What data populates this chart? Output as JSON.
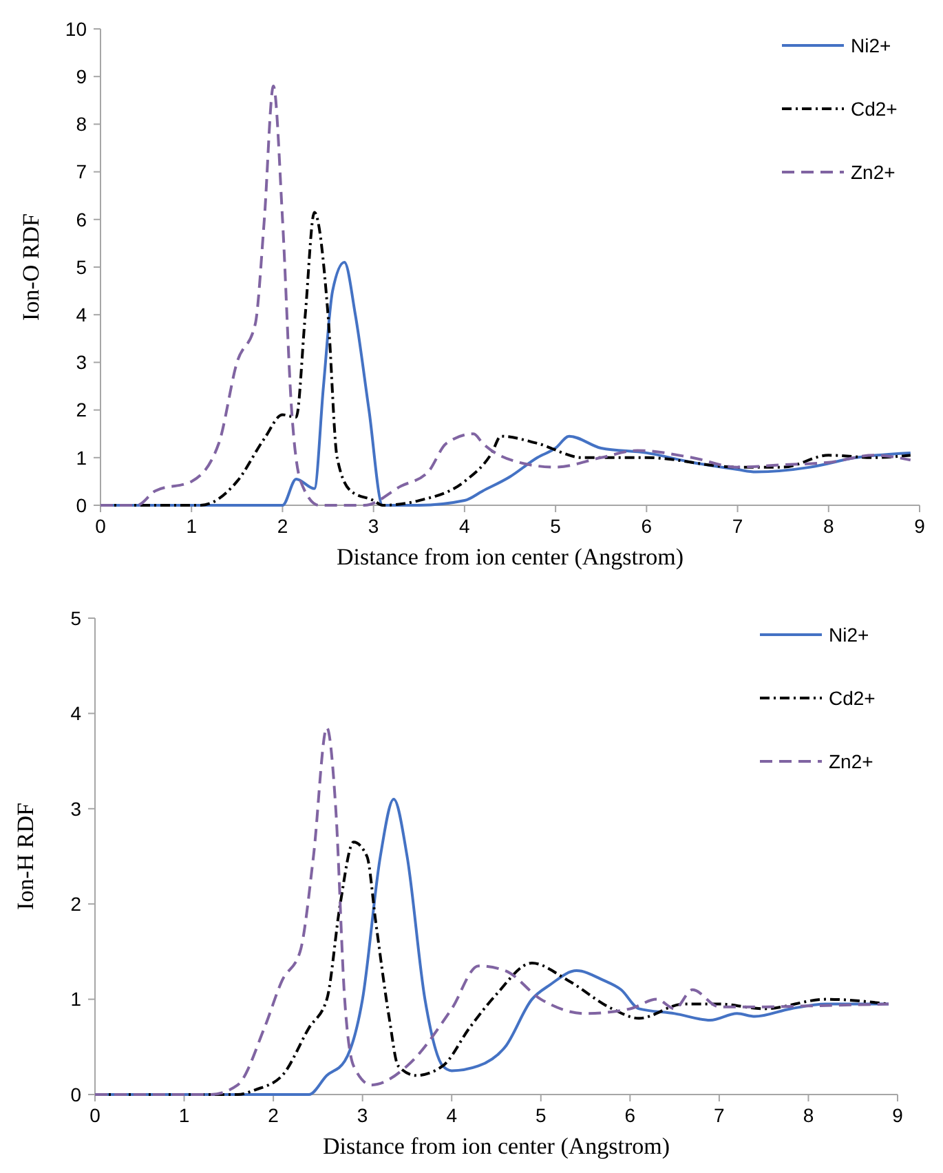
{
  "chart_data": [
    {
      "type": "line",
      "xlabel": "Distance from ion center (Angstrom)",
      "ylabel": "Ion-O RDF",
      "xlim": [
        0,
        9
      ],
      "xticks": [
        0,
        1,
        2,
        3,
        4,
        5,
        6,
        7,
        8,
        9
      ],
      "ylim": [
        0,
        10
      ],
      "yticks": [
        0,
        1,
        2,
        3,
        4,
        5,
        6,
        7,
        8,
        9,
        10
      ],
      "grid": false,
      "legend": "top right",
      "marker": "none",
      "series": [
        {
          "name": "Ni2+",
          "color": "#4472c4",
          "line_style": "solid",
          "x": [
            0,
            1,
            2.0,
            2.15,
            2.35,
            2.45,
            2.55,
            2.68,
            2.8,
            2.95,
            3.1,
            3.5,
            4,
            4.2,
            4.5,
            4.8,
            5.0,
            5.15,
            5.5,
            6,
            6.5,
            7,
            7.2,
            7.8,
            8.3,
            8.9
          ],
          "values": [
            0,
            0,
            0,
            0.55,
            0.35,
            2.5,
            4.5,
            5.1,
            4.0,
            2.0,
            0,
            0,
            0.1,
            0.3,
            0.6,
            1.0,
            1.2,
            1.45,
            1.2,
            1.1,
            0.9,
            0.75,
            0.7,
            0.8,
            1.0,
            1.1
          ]
        },
        {
          "name": "Cd2+",
          "color": "#000000",
          "line_style": "dashdot",
          "x": [
            0,
            1.1,
            1.5,
            1.8,
            2.0,
            2.15,
            2.25,
            2.35,
            2.5,
            2.6,
            2.75,
            3.0,
            3.1,
            3.5,
            4,
            4.3,
            4.4,
            4.8,
            5.3,
            6,
            7,
            7.5,
            8,
            8.5,
            8.9
          ],
          "values": [
            0,
            0,
            0.5,
            1.4,
            1.9,
            1.85,
            4.0,
            6.15,
            4.0,
            1.0,
            0.3,
            0.1,
            0,
            0.1,
            0.5,
            1.1,
            1.45,
            1.3,
            1.0,
            1.0,
            0.8,
            0.8,
            1.05,
            1.0,
            1.05
          ]
        },
        {
          "name": "Zn2+",
          "color": "#8064a2",
          "line_style": "dashed",
          "x": [
            0,
            0.4,
            0.6,
            1.0,
            1.3,
            1.5,
            1.7,
            1.8,
            1.9,
            2.0,
            2.1,
            2.2,
            2.4,
            2.9,
            3.3,
            3.6,
            3.8,
            4.1,
            4.2,
            4.6,
            5.0,
            5.5,
            5.9,
            6.5,
            7.0,
            7.5,
            8,
            8.5,
            8.9
          ],
          "values": [
            0,
            0,
            0.3,
            0.5,
            1.3,
            3.0,
            3.8,
            6.0,
            8.8,
            6.0,
            2.0,
            0.5,
            0,
            0,
            0.4,
            0.7,
            1.3,
            1.5,
            1.3,
            0.9,
            0.8,
            1.0,
            1.15,
            1.0,
            0.8,
            0.85,
            0.9,
            1.05,
            0.95
          ]
        }
      ]
    },
    {
      "type": "line",
      "xlabel": "Distance from ion center (Angstrom)",
      "ylabel": "Ion-H RDF",
      "xlim": [
        0,
        9
      ],
      "xticks": [
        0,
        1,
        2,
        3,
        4,
        5,
        6,
        7,
        8,
        9
      ],
      "ylim": [
        0,
        5
      ],
      "yticks": [
        0,
        1,
        2,
        3,
        4,
        5
      ],
      "grid": false,
      "legend": "top right",
      "marker": "none",
      "series": [
        {
          "name": "Ni2+",
          "color": "#4472c4",
          "line_style": "solid",
          "x": [
            0,
            2.4,
            2.6,
            2.8,
            3.0,
            3.2,
            3.35,
            3.5,
            3.7,
            3.9,
            4.0,
            4.3,
            4.6,
            4.9,
            5.1,
            5.4,
            5.7,
            5.9,
            6.1,
            6.5,
            6.9,
            7.2,
            7.4,
            7.8,
            8.2,
            8.9
          ],
          "values": [
            0,
            0,
            0.2,
            0.35,
            1.0,
            2.5,
            3.1,
            2.5,
            1.0,
            0.3,
            0.25,
            0.3,
            0.5,
            1.0,
            1.15,
            1.3,
            1.2,
            1.1,
            0.9,
            0.85,
            0.78,
            0.85,
            0.82,
            0.9,
            0.95,
            0.95
          ]
        },
        {
          "name": "Cd2+",
          "color": "#000000",
          "line_style": "dashdot",
          "x": [
            0,
            1.6,
            1.8,
            2.1,
            2.4,
            2.6,
            2.75,
            2.9,
            3.05,
            3.15,
            3.3,
            3.4,
            3.6,
            3.9,
            4.2,
            4.5,
            4.9,
            5.3,
            5.8,
            6.1,
            6.6,
            7.0,
            7.5,
            8.2,
            8.9
          ],
          "values": [
            0,
            0,
            0.05,
            0.2,
            0.7,
            1.0,
            2.0,
            2.65,
            2.5,
            1.8,
            0.8,
            0.3,
            0.2,
            0.3,
            0.7,
            1.05,
            1.38,
            1.2,
            0.9,
            0.8,
            0.95,
            0.95,
            0.9,
            1.0,
            0.95
          ]
        },
        {
          "name": "Zn2+",
          "color": "#8064a2",
          "line_style": "dashed",
          "x": [
            0,
            1.3,
            1.6,
            1.9,
            2.1,
            2.3,
            2.45,
            2.6,
            2.7,
            2.8,
            2.9,
            3.1,
            3.5,
            4.0,
            4.3,
            4.6,
            5.0,
            5.5,
            6.0,
            6.3,
            6.5,
            6.7,
            7.0,
            7.5,
            8.0,
            8.9
          ],
          "values": [
            0,
            0,
            0.1,
            0.7,
            1.2,
            1.5,
            2.5,
            3.85,
            3.0,
            1.0,
            0.3,
            0.1,
            0.3,
            0.9,
            1.35,
            1.3,
            1.0,
            0.85,
            0.9,
            1.0,
            0.9,
            1.1,
            0.92,
            0.92,
            0.93,
            0.95
          ]
        }
      ]
    }
  ]
}
